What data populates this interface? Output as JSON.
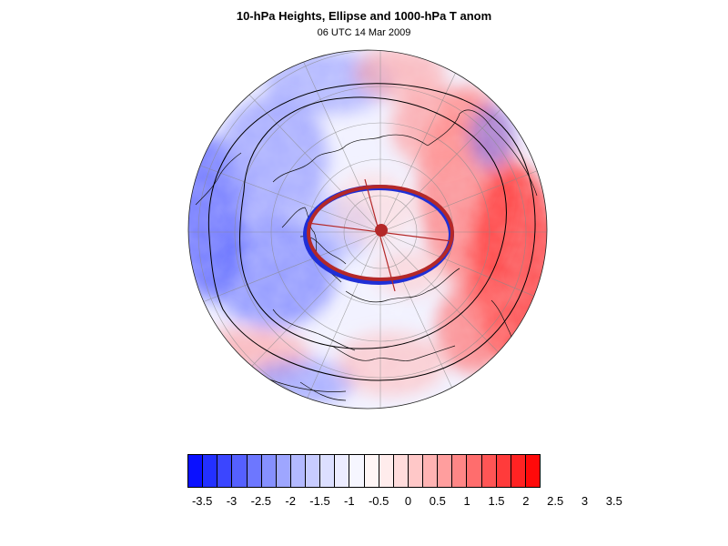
{
  "title": "10-hPa Heights, Ellipse and 1000-hPa T anom",
  "subtitle": "06 UTC 14 Mar 2009",
  "colors": {
    "neg_max": "#0b1cff",
    "pos_max": "#ff1a1a",
    "ellipse_blue": "#1f2fd6",
    "ellipse_red": "#b42828",
    "contour": "#000000"
  },
  "colorbar": {
    "labels": [
      "-3.5",
      "-3",
      "-2.5",
      "-2",
      "-1.5",
      "-1",
      "-0.5",
      "0",
      "0.5",
      "1",
      "1.5",
      "2",
      "2.5",
      "3",
      "3.5"
    ],
    "swatches": [
      "#0a10ff",
      "#2330ff",
      "#3b46ff",
      "#5560ff",
      "#6d77ff",
      "#8690ff",
      "#9ea6ff",
      "#b3b9ff",
      "#c8ccff",
      "#dcdfff",
      "#ececff",
      "#f6f6ff",
      "#fff6f6",
      "#ffecec",
      "#ffdcdc",
      "#ffc8c8",
      "#ffb3b3",
      "#ff9e9e",
      "#ff8686",
      "#ff6d6d",
      "#ff5555",
      "#ff3b3b",
      "#ff2323",
      "#ff0a0a"
    ]
  }
}
